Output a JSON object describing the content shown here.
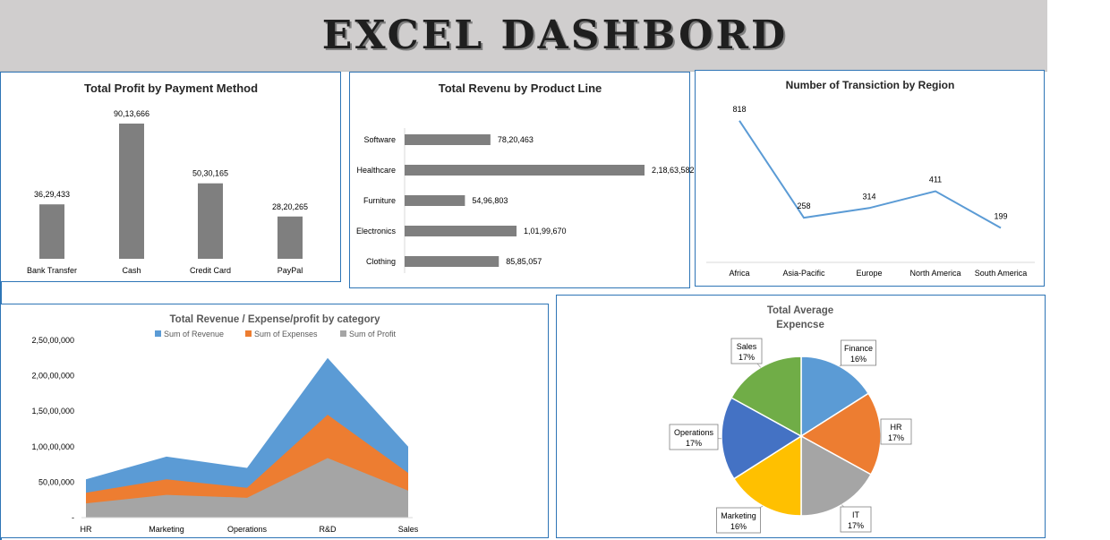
{
  "header": {
    "title": "EXCEL DASHBORD"
  },
  "colors": {
    "bar": "#7f7f7f",
    "line": "#5b9bd5",
    "revenue": "#5b9bd5",
    "expenses": "#ed7d31",
    "profit": "#a5a5a5",
    "panel_border": "#2e75b6"
  },
  "chart_data": [
    {
      "id": "profit_by_payment",
      "type": "bar",
      "title": "Total Profit by Payment Method",
      "categories": [
        "Bank Transfer",
        "Cash",
        "Credit Card",
        "PayPal"
      ],
      "values": [
        3629433,
        9013666,
        5030165,
        2820265
      ],
      "value_labels": [
        "36,29,433",
        "90,13,666",
        "50,30,165",
        "28,20,265"
      ],
      "axis": "hidden",
      "grid": false
    },
    {
      "id": "revenue_by_product",
      "type": "bar",
      "orientation": "horizontal",
      "title": "Total Revenu by Product Line",
      "categories": [
        "Software",
        "Healthcare",
        "Furniture",
        "Electronics",
        "Clothing"
      ],
      "values": [
        7820463,
        21863582,
        5496803,
        10199670,
        8585057
      ],
      "value_labels": [
        "78,20,463",
        "2,18,63,582",
        "54,96,803",
        "1,01,99,670",
        "85,85,057"
      ],
      "grid": false
    },
    {
      "id": "transactions_by_region",
      "type": "line",
      "title": "Number of Transiction by Region",
      "categories": [
        "Africa",
        "Asia-Pacific",
        "Europe",
        "North America",
        "South America"
      ],
      "values": [
        818,
        258,
        314,
        411,
        199
      ],
      "value_labels": [
        "818",
        "258",
        "314",
        "411",
        "199"
      ],
      "grid": false
    },
    {
      "id": "rev_exp_profit_by_category",
      "type": "area",
      "title": "Total Revenue / Expense/profit by category",
      "categories": [
        "HR",
        "Marketing",
        "Operations",
        "R&D",
        "Sales"
      ],
      "series": [
        {
          "name": "Sum of Revenue",
          "values": [
            5400000,
            8600000,
            7000000,
            22500000,
            10000000
          ]
        },
        {
          "name": "Sum of Expenses",
          "values": [
            3500000,
            5400000,
            4200000,
            14500000,
            6300000
          ]
        },
        {
          "name": "Sum of Profit",
          "values": [
            2000000,
            3200000,
            2800000,
            8400000,
            3800000
          ]
        }
      ],
      "ylim": [
        0,
        25000000
      ],
      "yticks": [
        0,
        5000000,
        10000000,
        15000000,
        20000000,
        25000000
      ],
      "ytick_labels": [
        "-",
        "50,00,000",
        "1,00,00,000",
        "1,50,00,000",
        "2,00,00,000",
        "2,50,00,000"
      ],
      "legend": "top",
      "grid": false
    },
    {
      "id": "avg_expense_pie",
      "type": "pie",
      "title_lines": [
        "Total Average",
        "Expencse"
      ],
      "labels": [
        "Finance",
        "HR",
        "IT",
        "Marketing",
        "Operations",
        "Sales"
      ],
      "values": [
        16,
        17,
        17,
        16,
        17,
        17
      ],
      "value_labels": [
        "16%",
        "17%",
        "17%",
        "16%",
        "17%",
        "17%"
      ],
      "colors": [
        "#5b9bd5",
        "#ed7d31",
        "#a5a5a5",
        "#ffc000",
        "#4472c4",
        "#70ad47"
      ]
    }
  ]
}
